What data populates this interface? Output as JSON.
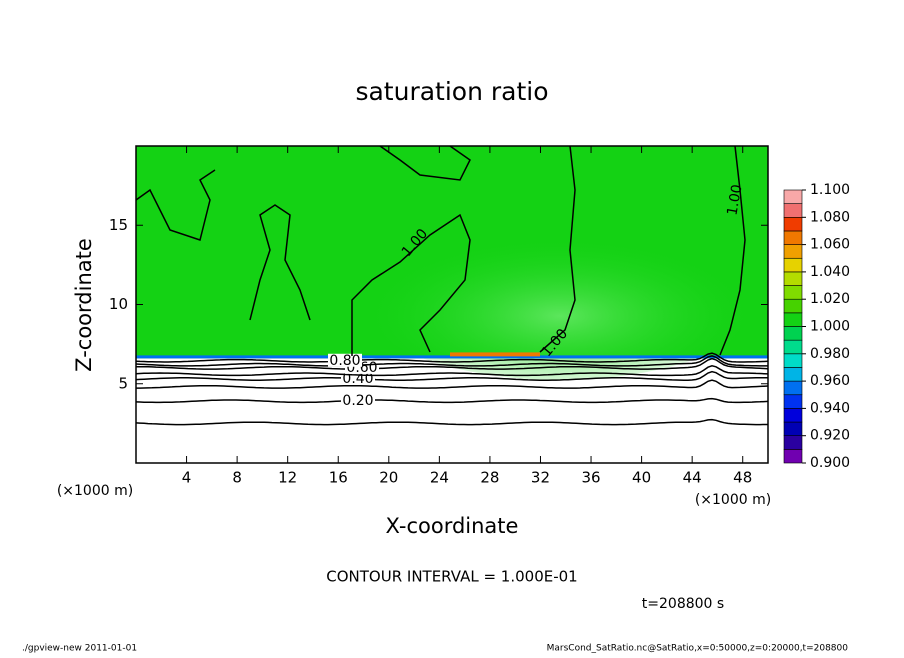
{
  "chart_data": {
    "type": "contour",
    "title": "saturation ratio",
    "x_label": "X-coordinate",
    "y_label": "Z-coordinate",
    "x_unit": "(×1000 m)",
    "y_unit": "(×1000 m)",
    "xlim": [
      0,
      50
    ],
    "xticks": [
      4,
      8,
      12,
      16,
      20,
      24,
      28,
      32,
      36,
      40,
      44,
      48
    ],
    "ylim": [
      0,
      20
    ],
    "yticks": [
      5,
      10,
      15
    ],
    "contours": [
      {
        "level": 0.1,
        "z": 2.5
      },
      {
        "level": 0.2,
        "z": 3.9,
        "label": "0.20"
      },
      {
        "level": 0.3,
        "z": 4.8
      },
      {
        "level": 0.4,
        "z": 5.3,
        "label": "0.40"
      },
      {
        "level": 0.5,
        "z": 5.6
      },
      {
        "level": 0.6,
        "z": 6.0,
        "label": "0.60"
      },
      {
        "level": 0.7,
        "z": 6.2
      },
      {
        "level": 0.8,
        "z": 6.45,
        "label": "0.80"
      },
      {
        "level": 1.0,
        "label": "1.00"
      }
    ],
    "colorbar": {
      "bounds": [
        0.9,
        0.91,
        0.92,
        0.93,
        0.94,
        0.95,
        0.96,
        0.97,
        0.98,
        0.99,
        1.0,
        1.01,
        1.02,
        1.03,
        1.04,
        1.05,
        1.06,
        1.07,
        1.08,
        1.09,
        1.1
      ],
      "colors": [
        "#7000b0",
        "#2a00a0",
        "#0000b4",
        "#0000dc",
        "#0032f0",
        "#0070f0",
        "#00b4e6",
        "#00dcc8",
        "#00dc8c",
        "#00d250",
        "#14d214",
        "#46d200",
        "#80dc00",
        "#b4dc00",
        "#e6d200",
        "#f0a000",
        "#f07800",
        "#f03c00",
        "#f07070",
        "#f8a8a8"
      ],
      "ticks": [
        {
          "value": 0.9,
          "label": "0.900"
        },
        {
          "value": 0.92,
          "label": "0.920"
        },
        {
          "value": 0.94,
          "label": "0.940"
        },
        {
          "value": 0.96,
          "label": "0.960"
        },
        {
          "value": 0.98,
          "label": "0.980"
        },
        {
          "value": 1.0,
          "label": "1.000"
        },
        {
          "value": 1.02,
          "label": "1.020"
        },
        {
          "value": 1.04,
          "label": "1.040"
        },
        {
          "value": 1.06,
          "label": "1.060"
        },
        {
          "value": 1.08,
          "label": "1.080"
        },
        {
          "value": 1.1,
          "label": "1.100"
        }
      ]
    },
    "contour_interval": "CONTOUR INTERVAL = 1.000E-01",
    "time": "t=208800 s",
    "footer_left": "./gpview-new   2011-01-01",
    "footer_right": "MarsCond_SatRatio.nc@SatRatio,x=0:50000,z=0:20000,t=208800"
  }
}
